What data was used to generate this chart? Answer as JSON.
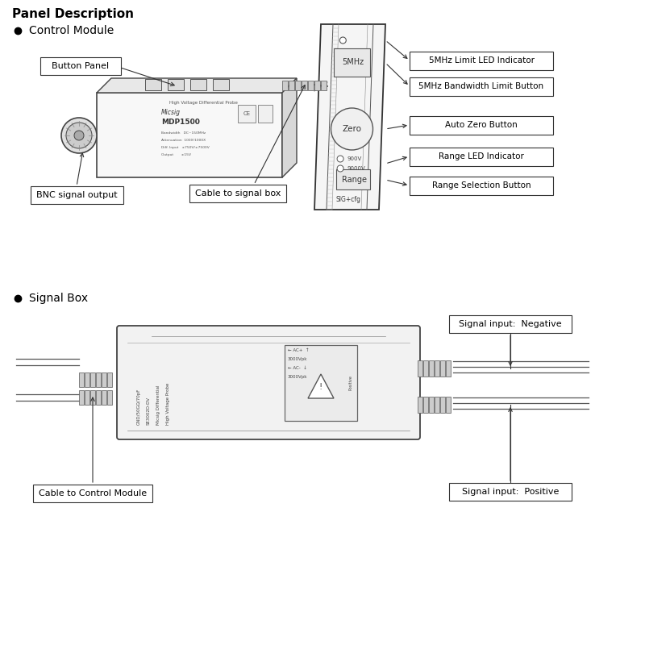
{
  "title": "Panel Description",
  "section1": "Control Module",
  "section2": "Signal Box",
  "bg_color": "#ffffff",
  "labels_right": [
    "5MHz Limit LED Indicator",
    "5MHz Bandwidth Limit Button",
    "Auto Zero Button",
    "Range LED Indicator",
    "Range Selection Button"
  ],
  "label_btn_panel": "Button Panel",
  "label_bnc": "BNC signal output",
  "label_cable_sig": "Cable to signal box",
  "label_cable_ctrl": "Cable to Control Module",
  "label_neg": "Signal input:  Negative",
  "label_pos": "Signal input:  Positive"
}
